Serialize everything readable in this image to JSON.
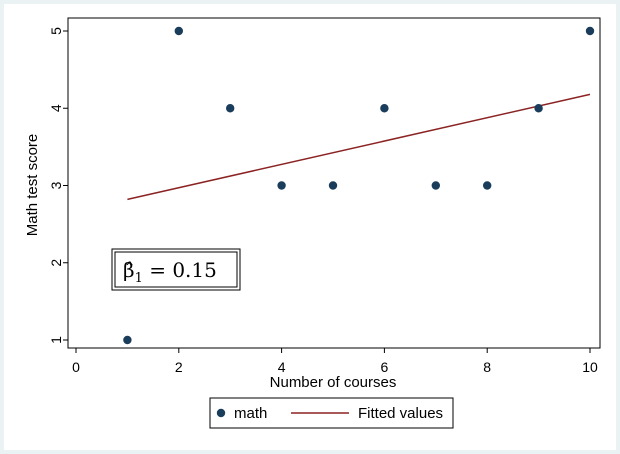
{
  "chart_data": {
    "type": "scatter",
    "xlabel": "Number of courses",
    "ylabel": "Math test score",
    "xlim": [
      0,
      10
    ],
    "ylim": [
      1,
      5
    ],
    "x_ticks": [
      0,
      2,
      4,
      6,
      8,
      10
    ],
    "y_ticks": [
      1,
      2,
      3,
      4,
      5
    ],
    "grid": false,
    "legend_position": "bottom",
    "series": [
      {
        "name": "math",
        "kind": "scatter",
        "color": "#1a3d5c",
        "x": [
          1,
          2,
          3,
          4,
          5,
          6,
          7,
          8,
          9,
          10
        ],
        "y": [
          1,
          5,
          4,
          3,
          3,
          4,
          3,
          3,
          4,
          5
        ]
      },
      {
        "name": "Fitted values",
        "kind": "line",
        "color": "#8b2323",
        "x": [
          1,
          10
        ],
        "y": [
          2.82,
          4.18
        ]
      }
    ],
    "annotation": {
      "text_prefix": "β̂",
      "text_subscript": "1",
      "text_suffix": " = 0.15"
    }
  },
  "colors": {
    "outer_background": "#eaf2f3",
    "plot_background": "#ffffff"
  }
}
